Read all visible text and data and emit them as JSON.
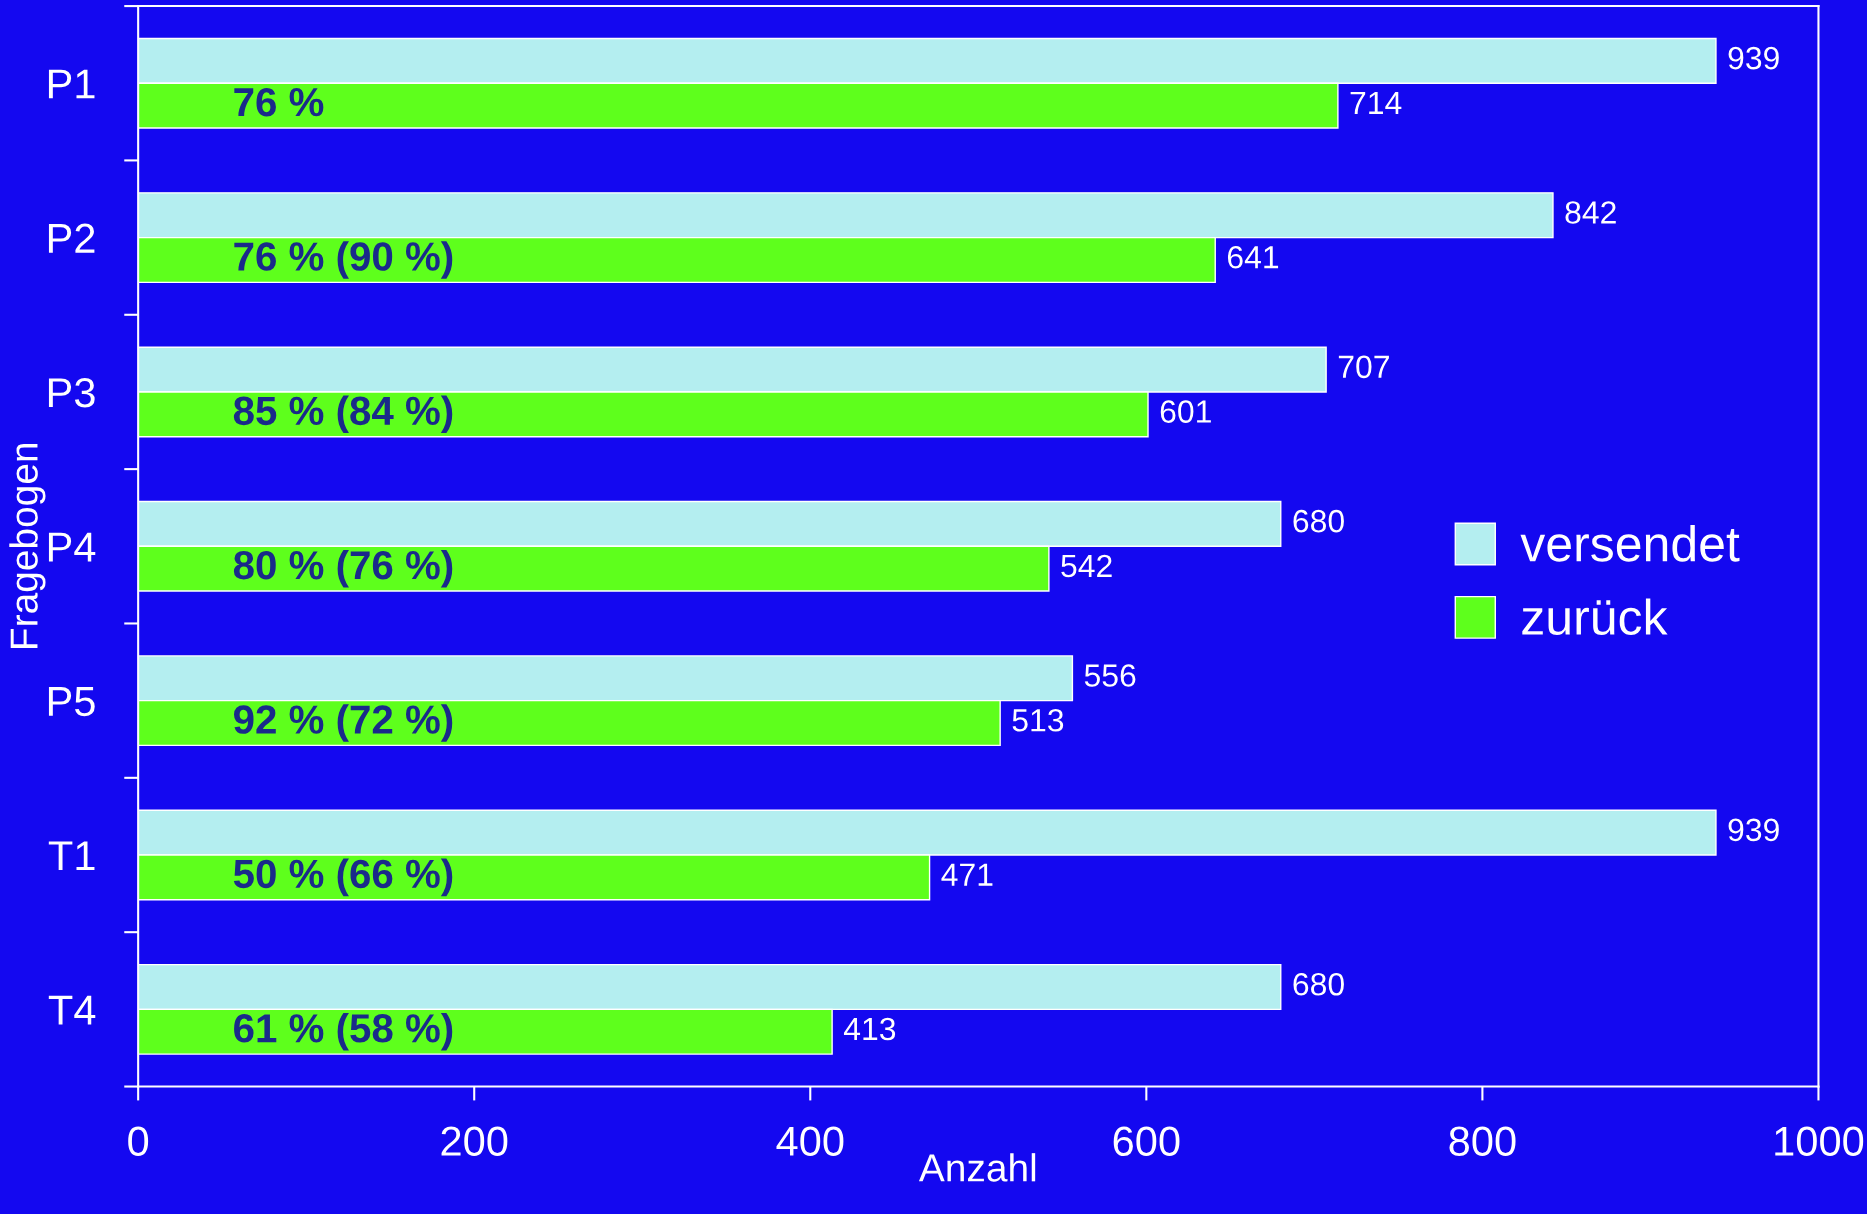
{
  "chart_data": {
    "type": "bar",
    "orientation": "horizontal",
    "xlabel": "Anzahl",
    "ylabel": "Fragebogen",
    "categories": [
      "P1",
      "P2",
      "P3",
      "P4",
      "P5",
      "T1",
      "T4"
    ],
    "series": [
      {
        "name": "versendet",
        "color": "#b4eef0",
        "values": [
          939,
          842,
          707,
          680,
          556,
          939,
          680
        ]
      },
      {
        "name": "zurück",
        "color": "#5eff1c",
        "values": [
          714,
          641,
          601,
          542,
          513,
          471,
          413
        ]
      }
    ],
    "xlim": [
      0,
      1000
    ],
    "xticks": [
      0,
      200,
      400,
      600,
      800,
      1000
    ],
    "data_labels": true,
    "legend": "right",
    "grid": false,
    "annotations": [
      {
        "text": "76 %",
        "y": "P1"
      },
      {
        "text": "76 % (90 %)",
        "y": "P2"
      },
      {
        "text": "85 % (84 %)",
        "y": "P3"
      },
      {
        "text": "80 % (76 %)",
        "y": "P4"
      },
      {
        "text": "92 % (72 %)",
        "y": "P5"
      },
      {
        "text": "50 % (66 %)",
        "y": "T1"
      },
      {
        "text": "61 % (58 %)",
        "y": "T4"
      }
    ]
  }
}
